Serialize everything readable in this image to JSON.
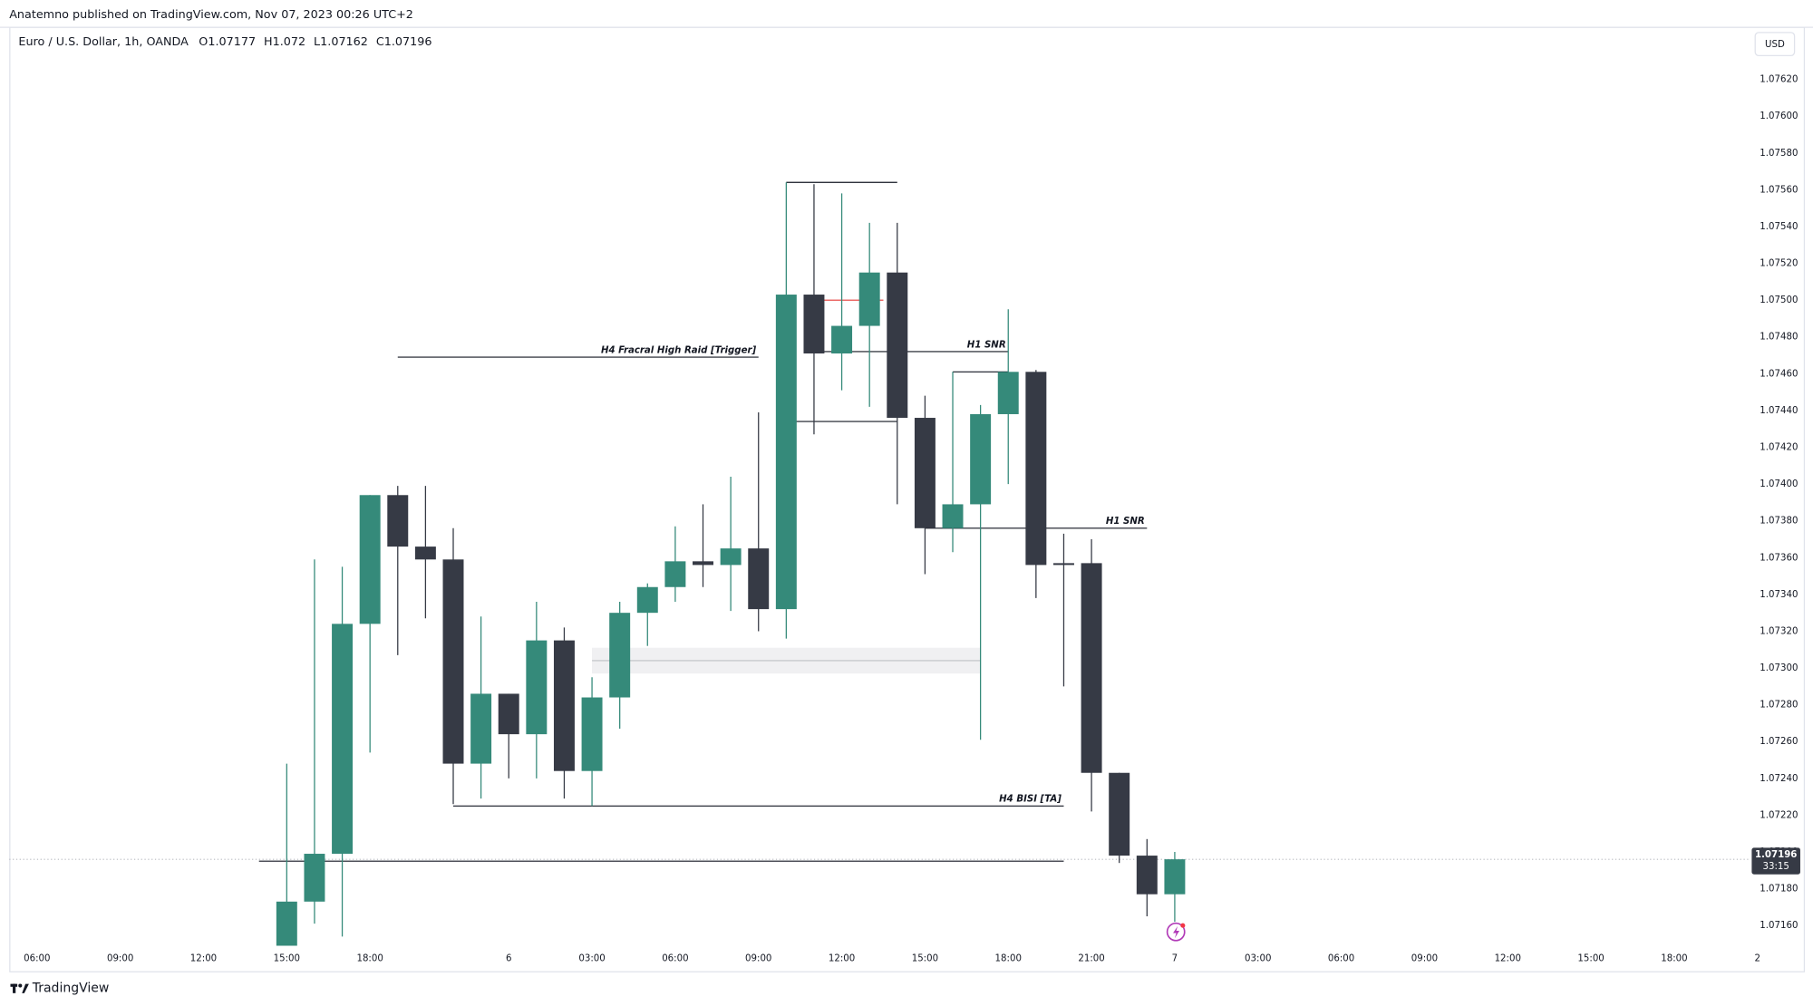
{
  "header": {
    "published": "Anatemno published on TradingView.com, Nov 07, 2023 00:26 UTC+2"
  },
  "footer": {
    "brand": "TradingView"
  },
  "chart_data": {
    "type": "candlestick",
    "title": "Euro / U.S. Dollar, 1h, OANDA",
    "ohlc_letters": [
      "O",
      "H",
      "L",
      "C"
    ],
    "currency": "USD",
    "countdown": "33:15",
    "up_color": "#358a7a",
    "down_color": "#363a45",
    "grid": false,
    "categories": [
      "06:00",
      null,
      null,
      "09:00",
      null,
      null,
      "12:00",
      null,
      null,
      "15:00",
      null,
      null,
      "18:00",
      null,
      null,
      null,
      null,
      "6",
      null,
      null,
      "03:00",
      null,
      null,
      "06:00",
      null,
      null,
      "09:00",
      null,
      null,
      "12:00",
      null,
      null,
      "15:00",
      null,
      null,
      "18:00",
      null,
      null,
      "21:00",
      null,
      null,
      "7",
      null,
      null,
      "03:00",
      null,
      null,
      "06:00",
      null,
      null,
      "09:00",
      null,
      null,
      "12:00",
      null,
      null,
      "15:00",
      null,
      null,
      "18:00",
      null,
      null,
      "2"
    ],
    "open": [
      null,
      null,
      null,
      null,
      null,
      null,
      null,
      null,
      null,
      1.07149,
      1.07173,
      1.07199,
      1.07324,
      1.07394,
      1.07366,
      1.07359,
      1.07248,
      1.07286,
      1.07264,
      1.07315,
      1.07244,
      1.07284,
      1.0733,
      1.07344,
      1.07358,
      1.07356,
      1.07365,
      1.07332,
      1.07503,
      1.07471,
      1.07486,
      1.07515,
      1.07436,
      1.07376,
      1.07389,
      1.07438,
      1.07461,
      1.07357,
      1.07357,
      1.07243,
      1.07198,
      1.07177,
      null,
      null,
      null,
      null,
      null,
      null,
      null,
      null,
      null,
      null,
      null,
      null,
      null,
      null,
      null,
      null,
      null,
      null,
      null,
      null,
      null
    ],
    "high": [
      null,
      null,
      null,
      null,
      null,
      null,
      null,
      null,
      null,
      1.07248,
      1.07359,
      1.07355,
      1.07394,
      1.07399,
      1.07399,
      1.07376,
      1.07328,
      1.07286,
      1.07336,
      1.07322,
      1.07295,
      1.07336,
      1.07346,
      1.07377,
      1.07389,
      1.07404,
      1.07439,
      1.07564,
      1.07563,
      1.07558,
      1.07542,
      1.07542,
      1.07448,
      1.07461,
      1.07443,
      1.07495,
      1.07462,
      1.07373,
      1.0737,
      1.07243,
      1.07207,
      1.072,
      null,
      null,
      null,
      null,
      null,
      null,
      null,
      null,
      null,
      null,
      null,
      null,
      null,
      null,
      null,
      null,
      null,
      null,
      null,
      null,
      null
    ],
    "low": [
      null,
      null,
      null,
      null,
      null,
      null,
      null,
      null,
      null,
      1.0714,
      1.07161,
      1.07154,
      1.07254,
      1.07307,
      1.07327,
      1.07226,
      1.07229,
      1.0724,
      1.0724,
      1.07229,
      1.07225,
      1.07267,
      1.07312,
      1.07336,
      1.07344,
      1.07331,
      1.0732,
      1.07316,
      1.07427,
      1.07451,
      1.07442,
      1.07389,
      1.07351,
      1.07363,
      1.07261,
      1.074,
      1.07338,
      1.0729,
      1.07222,
      1.07194,
      1.07165,
      1.07162,
      null,
      null,
      null,
      null,
      null,
      null,
      null,
      null,
      null,
      null,
      null,
      null,
      null,
      null,
      null,
      null,
      null,
      null,
      null,
      null,
      null
    ],
    "close": [
      null,
      null,
      null,
      null,
      null,
      null,
      null,
      null,
      null,
      1.07173,
      1.07199,
      1.07324,
      1.07394,
      1.07366,
      1.07359,
      1.07248,
      1.07286,
      1.07264,
      1.07315,
      1.07244,
      1.07284,
      1.0733,
      1.07344,
      1.07358,
      1.07356,
      1.07365,
      1.07332,
      1.07503,
      1.07471,
      1.07486,
      1.07515,
      1.07436,
      1.07376,
      1.07389,
      1.07438,
      1.07461,
      1.07356,
      1.07356,
      1.07243,
      1.07198,
      1.07177,
      1.07196,
      null,
      null,
      null,
      null,
      null,
      null,
      null,
      null,
      null,
      null,
      null,
      null,
      null,
      null,
      null,
      null,
      null,
      null,
      null,
      null,
      null
    ],
    "ylim": [
      1.07149,
      1.07648
    ],
    "yticks": [
      {
        "value": 1.0716,
        "label": "1.07160"
      },
      {
        "value": 1.0718,
        "label": "1.07180"
      },
      {
        "value": 1.072,
        "label": "1.07200"
      },
      {
        "value": 1.0722,
        "label": "1.07220"
      },
      {
        "value": 1.0724,
        "label": "1.07240"
      },
      {
        "value": 1.0726,
        "label": "1.07260"
      },
      {
        "value": 1.0728,
        "label": "1.07280"
      },
      {
        "value": 1.073,
        "label": "1.07300"
      },
      {
        "value": 1.0732,
        "label": "1.07320"
      },
      {
        "value": 1.0734,
        "label": "1.07340"
      },
      {
        "value": 1.0736,
        "label": "1.07360"
      },
      {
        "value": 1.0738,
        "label": "1.07380"
      },
      {
        "value": 1.074,
        "label": "1.07400"
      },
      {
        "value": 1.0742,
        "label": "1.07420"
      },
      {
        "value": 1.0744,
        "label": "1.07440"
      },
      {
        "value": 1.0746,
        "label": "1.07460"
      },
      {
        "value": 1.0748,
        "label": "1.07480"
      },
      {
        "value": 1.075,
        "label": "1.07500"
      },
      {
        "value": 1.0752,
        "label": "1.07520"
      },
      {
        "value": 1.0754,
        "label": "1.07540"
      },
      {
        "value": 1.0756,
        "label": "1.07560"
      },
      {
        "value": 1.0758,
        "label": "1.07580"
      },
      {
        "value": 1.076,
        "label": "1.07600"
      },
      {
        "value": 1.0762,
        "label": "1.07620"
      }
    ],
    "drawings": [
      {
        "label": "H4 Fracral High Raid [Trigger]",
        "price": 1.07469,
        "from": 13,
        "to": 26
      },
      {
        "label": "H1 SNR",
        "price": 1.07472,
        "from": 28,
        "to": 35
      },
      {
        "label": "H1 SNR",
        "price": 1.07376,
        "from": 32,
        "to": 40
      },
      {
        "label": "H4 BISI [TA]",
        "price": 1.07225,
        "from": 15,
        "to": 37
      },
      {
        "price": 1.07195,
        "from": 8,
        "to": 37
      },
      {
        "price": 1.07564,
        "from": 27,
        "to": 31
      },
      {
        "price": 1.07434,
        "from": 27,
        "to": 31
      },
      {
        "price": 1.07461,
        "from": 33,
        "to": 35
      },
      {
        "price": 1.075,
        "from": 28,
        "to": 30.5,
        "color": "#e53935"
      }
    ],
    "zone": {
      "from": 20,
      "to": 34,
      "low": 1.07297,
      "high": 1.07311
    }
  }
}
